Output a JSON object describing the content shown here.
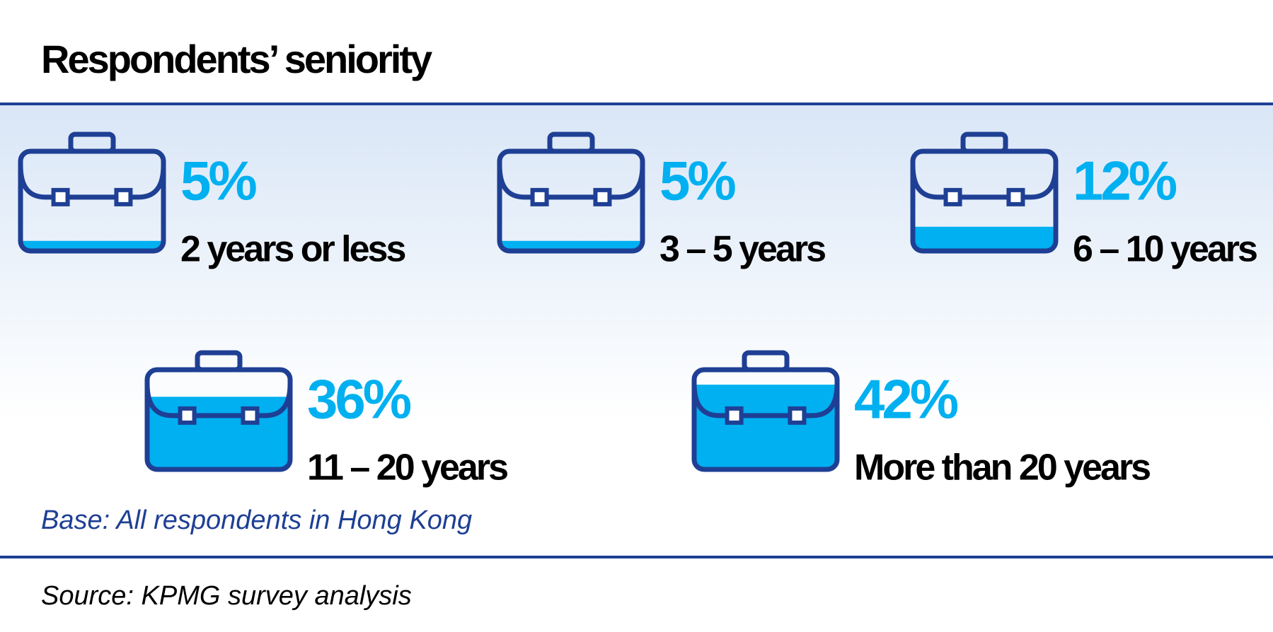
{
  "chart_data": {
    "type": "pictogram",
    "title": "Respondents’ seniority",
    "categories": [
      "2 years or less",
      "3 – 5 years",
      "6 – 10 years",
      "11 – 20 years",
      "More than 20 years"
    ],
    "values": [
      5,
      5,
      12,
      36,
      42
    ],
    "value_labels": [
      "5%",
      "5%",
      "12%",
      "36%",
      "42%"
    ],
    "color": "#00b0f0",
    "base": "Base: All respondents in Hong Kong",
    "source": "Source: KPMG survey analysis"
  }
}
